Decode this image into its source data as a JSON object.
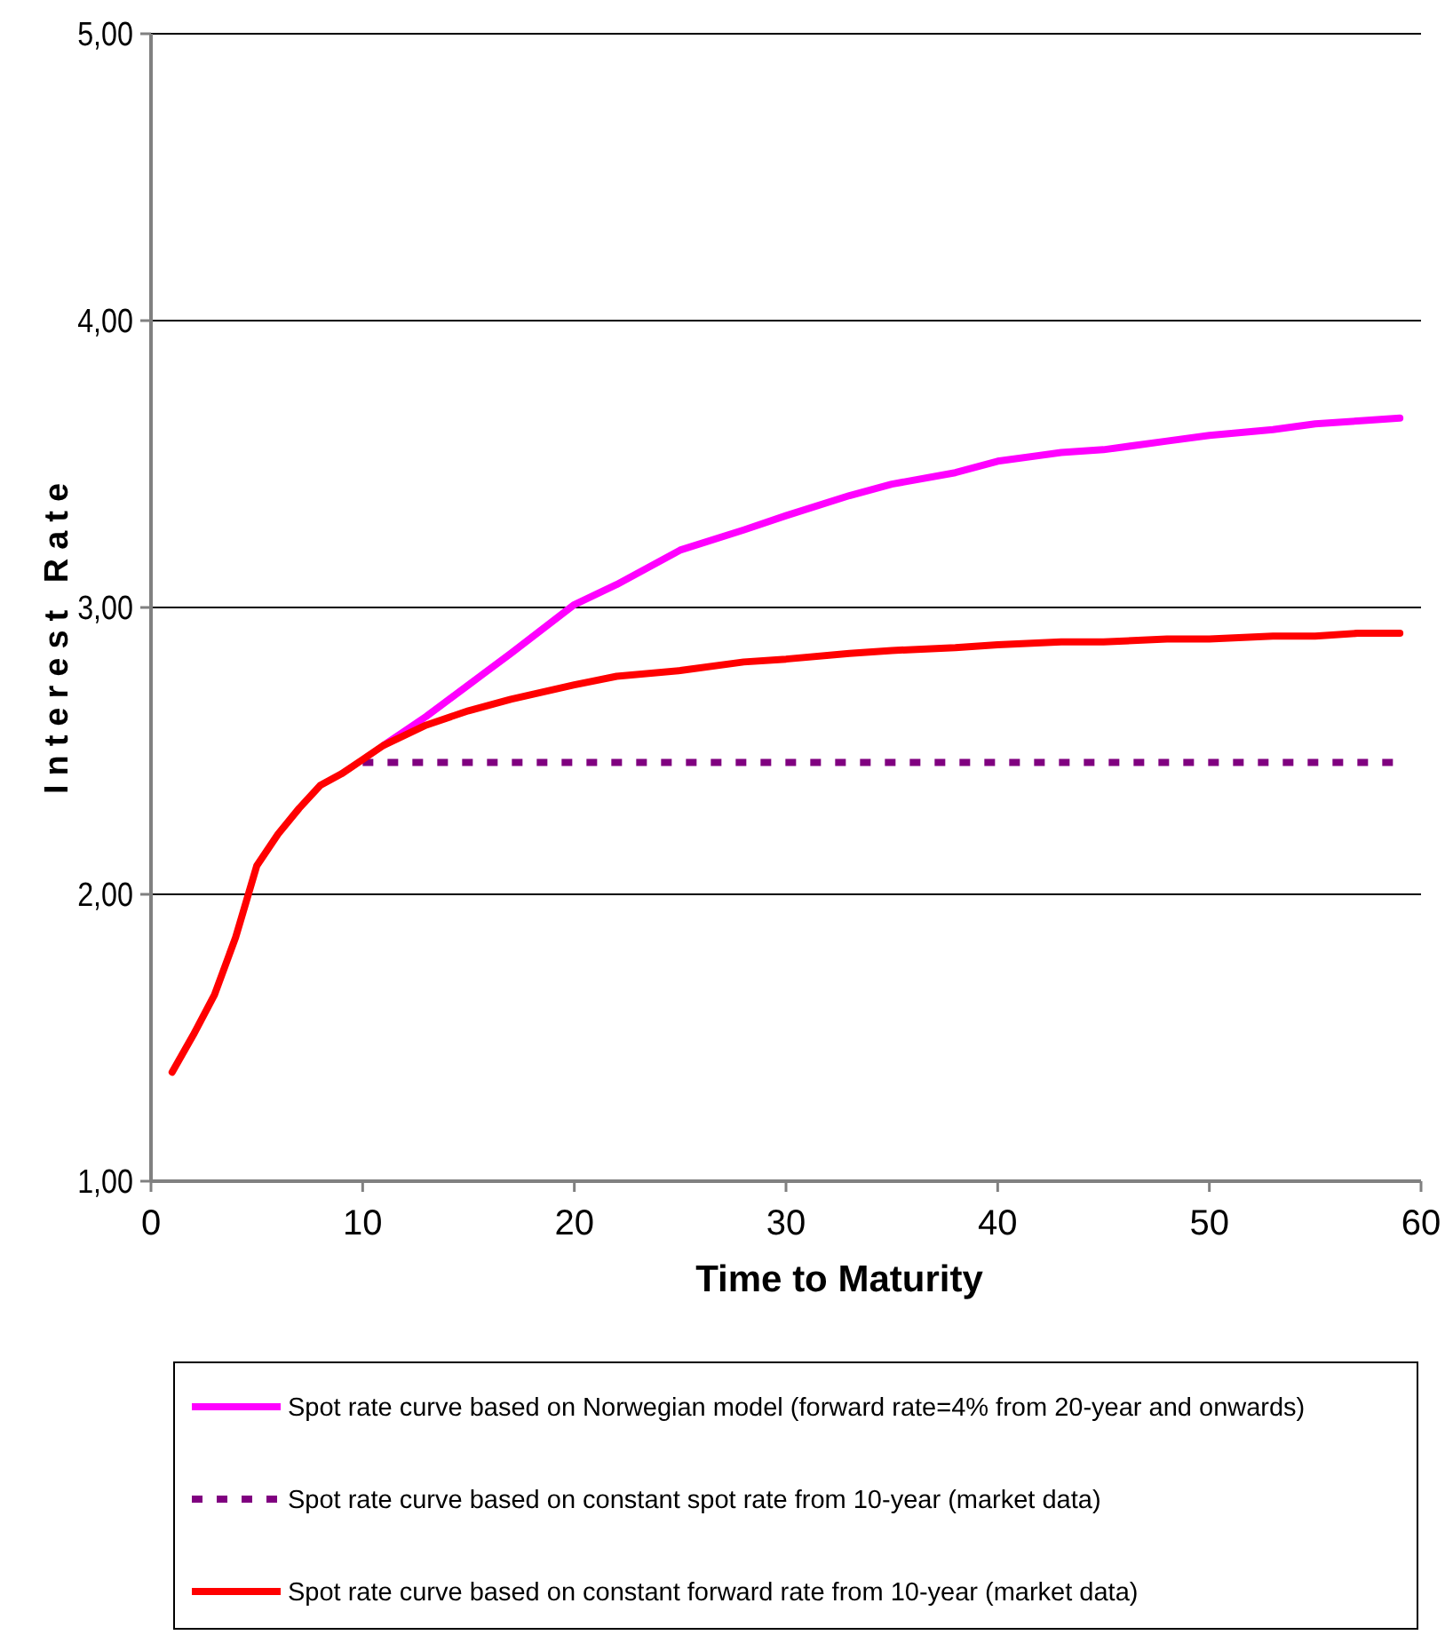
{
  "chart_data": {
    "type": "line",
    "xlabel": "Time to Maturity",
    "ylabel": "Interest Rate",
    "xlim": [
      0,
      60
    ],
    "xticks": [
      0,
      10,
      20,
      30,
      40,
      50,
      60
    ],
    "ylim": [
      1,
      5
    ],
    "yticks": [
      {
        "value": 1,
        "label": "1,00"
      },
      {
        "value": 2,
        "label": "2,00"
      },
      {
        "value": 3,
        "label": "3,00"
      },
      {
        "value": 4,
        "label": "4,00"
      },
      {
        "value": 5,
        "label": "5,00"
      }
    ],
    "grid": "y",
    "legend": "bottom",
    "marker": "none",
    "series": [
      {
        "name": "Spot rate curve based on Norwegian model (forward rate=4% from 20-year and onwards)",
        "color": "#ff00ff",
        "line_style": "solid",
        "x": [
          11,
          13,
          15,
          17,
          20,
          22,
          25,
          28,
          30,
          33,
          35,
          38,
          40,
          43,
          45,
          48,
          50,
          53,
          55,
          57,
          59
        ],
        "values": [
          2.52,
          2.62,
          2.73,
          2.84,
          3.01,
          3.08,
          3.2,
          3.27,
          3.32,
          3.39,
          3.43,
          3.47,
          3.51,
          3.54,
          3.55,
          3.58,
          3.6,
          3.62,
          3.64,
          3.65,
          3.66
        ]
      },
      {
        "name": "Spot rate curve based on constant spot rate from 10-year (market data)",
        "color": "#800080",
        "line_style": "dotted",
        "x": [
          10,
          59
        ],
        "values": [
          2.46,
          2.46
        ]
      },
      {
        "name": "Spot rate curve based on constant forward rate from 10-year (market data)",
        "color": "#ff0000",
        "line_style": "solid",
        "x": [
          1,
          2,
          3,
          4,
          5,
          6,
          7,
          8,
          9,
          10,
          11,
          13,
          15,
          17,
          20,
          22,
          25,
          28,
          30,
          33,
          35,
          38,
          40,
          43,
          45,
          48,
          50,
          53,
          55,
          57,
          59
        ],
        "values": [
          1.38,
          1.51,
          1.65,
          1.85,
          2.1,
          2.21,
          2.3,
          2.38,
          2.42,
          2.47,
          2.52,
          2.59,
          2.64,
          2.68,
          2.73,
          2.76,
          2.78,
          2.81,
          2.82,
          2.84,
          2.85,
          2.86,
          2.87,
          2.88,
          2.88,
          2.89,
          2.89,
          2.9,
          2.9,
          2.91,
          2.91
        ]
      }
    ]
  }
}
